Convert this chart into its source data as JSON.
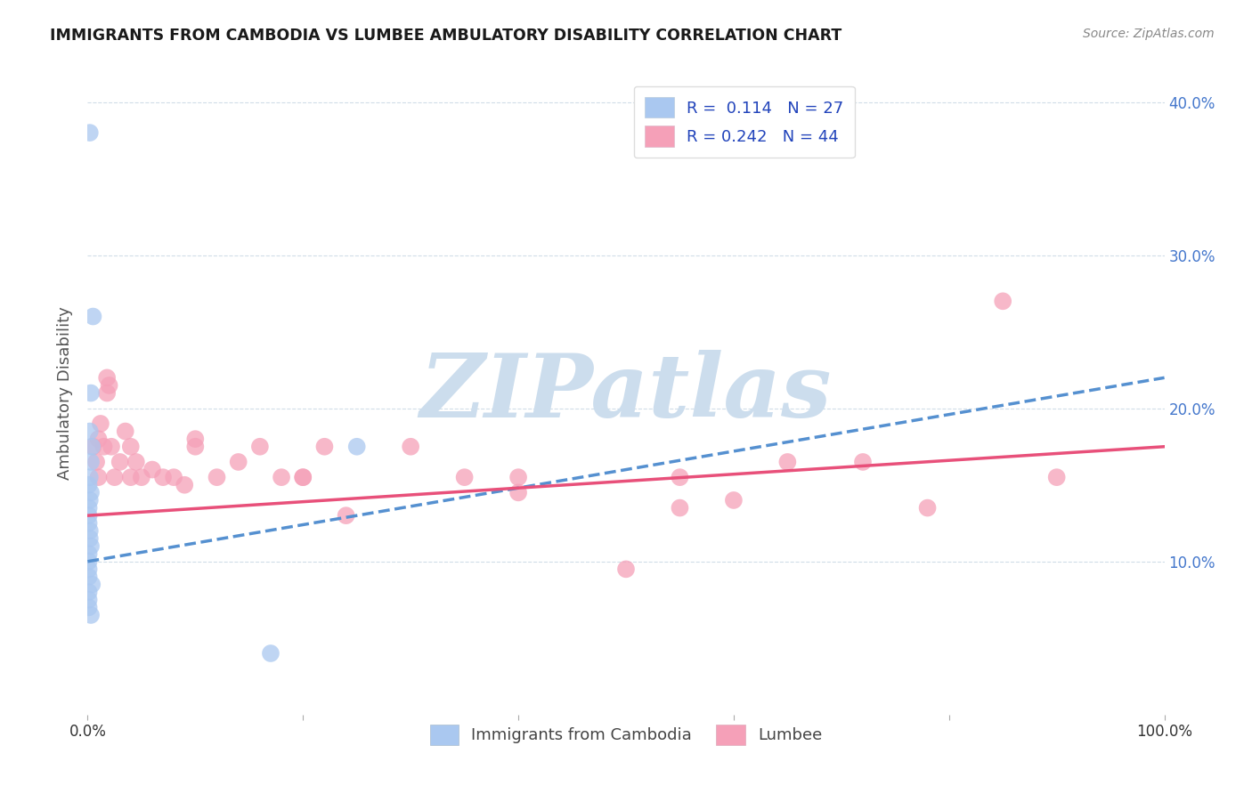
{
  "title": "IMMIGRANTS FROM CAMBODIA VS LUMBEE AMBULATORY DISABILITY CORRELATION CHART",
  "source": "Source: ZipAtlas.com",
  "ylabel": "Ambulatory Disability",
  "xlim": [
    0.0,
    1.0
  ],
  "ylim": [
    0.0,
    0.42
  ],
  "yticks": [
    0.1,
    0.2,
    0.3,
    0.4
  ],
  "ytick_labels": [
    "10.0%",
    "20.0%",
    "30.0%",
    "40.0%"
  ],
  "xticks": [
    0.0,
    0.2,
    0.4,
    0.6,
    0.8,
    1.0
  ],
  "xtick_labels": [
    "0.0%",
    "",
    "",
    "",
    "",
    "100.0%"
  ],
  "color_cambodia": "#aac8f0",
  "color_lumbee": "#f5a0b8",
  "color_line_cambodia": "#5590d0",
  "color_line_lumbee": "#e8507a",
  "color_grid": "#d0dde8",
  "watermark_text": "ZIPatlas",
  "watermark_color": "#ccdded",
  "legend_r1_text": "R =  0.114   N = 27",
  "legend_r2_text": "R = 0.242   N = 44",
  "legend_text_color": "#2244bb",
  "bottom_legend_label1": "Immigrants from Cambodia",
  "bottom_legend_label2": "Lumbee",
  "cambodia_x": [
    0.002,
    0.005,
    0.003,
    0.002,
    0.004,
    0.003,
    0.002,
    0.001,
    0.003,
    0.002,
    0.001,
    0.001,
    0.001,
    0.002,
    0.002,
    0.003,
    0.001,
    0.001,
    0.001,
    0.001,
    0.004,
    0.001,
    0.001,
    0.001,
    0.003,
    0.25,
    0.17
  ],
  "cambodia_y": [
    0.38,
    0.26,
    0.21,
    0.185,
    0.175,
    0.165,
    0.155,
    0.15,
    0.145,
    0.14,
    0.135,
    0.13,
    0.125,
    0.12,
    0.115,
    0.11,
    0.105,
    0.1,
    0.095,
    0.09,
    0.085,
    0.08,
    0.075,
    0.07,
    0.065,
    0.175,
    0.04
  ],
  "lumbee_x": [
    0.005,
    0.008,
    0.01,
    0.01,
    0.012,
    0.015,
    0.018,
    0.018,
    0.02,
    0.022,
    0.025,
    0.03,
    0.035,
    0.04,
    0.04,
    0.045,
    0.05,
    0.06,
    0.07,
    0.08,
    0.09,
    0.1,
    0.12,
    0.14,
    0.16,
    0.18,
    0.2,
    0.22,
    0.24,
    0.3,
    0.35,
    0.4,
    0.5,
    0.55,
    0.6,
    0.65,
    0.72,
    0.78,
    0.85,
    0.9,
    0.55,
    0.4,
    0.2,
    0.1
  ],
  "lumbee_y": [
    0.175,
    0.165,
    0.18,
    0.155,
    0.19,
    0.175,
    0.22,
    0.21,
    0.215,
    0.175,
    0.155,
    0.165,
    0.185,
    0.175,
    0.155,
    0.165,
    0.155,
    0.16,
    0.155,
    0.155,
    0.15,
    0.18,
    0.155,
    0.165,
    0.175,
    0.155,
    0.155,
    0.175,
    0.13,
    0.175,
    0.155,
    0.155,
    0.095,
    0.135,
    0.14,
    0.165,
    0.165,
    0.135,
    0.27,
    0.155,
    0.155,
    0.145,
    0.155,
    0.175
  ],
  "line_cambodia_x0": 0.0,
  "line_cambodia_x1": 1.0,
  "line_cambodia_y0": 0.1,
  "line_cambodia_y1": 0.22,
  "line_lumbee_x0": 0.0,
  "line_lumbee_x1": 1.0,
  "line_lumbee_y0": 0.13,
  "line_lumbee_y1": 0.175
}
